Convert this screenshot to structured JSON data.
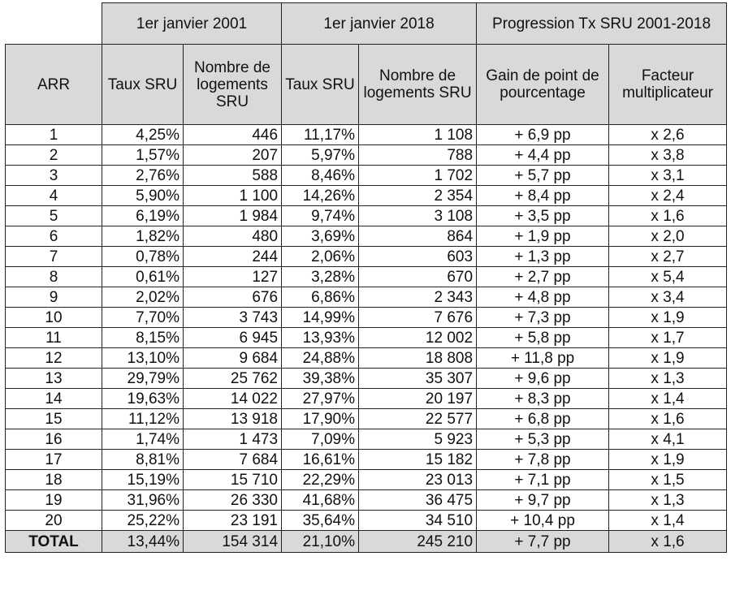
{
  "header": {
    "group_2001": "1er janvier 2001",
    "group_2018": "1er janvier 2018",
    "group_progression": "Progression Tx SRU 2001-2018",
    "col_arr": "ARR",
    "col_taux_2001": "Taux SRU",
    "col_nb_2001": "Nombre de logements SRU",
    "col_taux_2018": "Taux SRU",
    "col_nb_2018": "Nombre de logements SRU",
    "col_gain": "Gain de point de pourcentage",
    "col_facteur": "Facteur multiplicateur"
  },
  "rows": [
    {
      "arr": "1",
      "taux2001": "4,25%",
      "nb2001": "446",
      "taux2018": "11,17%",
      "nb2018": "1 108",
      "gain": "+ 6,9 pp",
      "facteur": "x 2,6",
      "bold": true
    },
    {
      "arr": "2",
      "taux2001": "1,57%",
      "nb2001": "207",
      "taux2018": "5,97%",
      "nb2018": "788",
      "gain": "+ 4,4 pp",
      "facteur": "x 3,8",
      "bold": true
    },
    {
      "arr": "3",
      "taux2001": "2,76%",
      "nb2001": "588",
      "taux2018": "8,46%",
      "nb2018": "1 702",
      "gain": "+ 5,7 pp",
      "facteur": "x 3,1",
      "bold": true
    },
    {
      "arr": "4",
      "taux2001": "5,90%",
      "nb2001": "1 100",
      "taux2018": "14,26%",
      "nb2018": "2 354",
      "gain": "+ 8,4 pp",
      "facteur": "x 2,4",
      "bold": true
    },
    {
      "arr": "5",
      "taux2001": "6,19%",
      "nb2001": "1 984",
      "taux2018": "9,74%",
      "nb2018": "3 108",
      "gain": "+ 3,5 pp",
      "facteur": "x 1,6",
      "bold": false
    },
    {
      "arr": "6",
      "taux2001": "1,82%",
      "nb2001": "480",
      "taux2018": "3,69%",
      "nb2018": "864",
      "gain": "+ 1,9 pp",
      "facteur": "x 2,0",
      "bold": true
    },
    {
      "arr": "7",
      "taux2001": "0,78%",
      "nb2001": "244",
      "taux2018": "2,06%",
      "nb2018": "603",
      "gain": "+ 1,3 pp",
      "facteur": "x 2,7",
      "bold": true
    },
    {
      "arr": "8",
      "taux2001": "0,61%",
      "nb2001": "127",
      "taux2018": "3,28%",
      "nb2018": "670",
      "gain": "+ 2,7 pp",
      "facteur": "x 5,4",
      "bold": true
    },
    {
      "arr": "9",
      "taux2001": "2,02%",
      "nb2001": "676",
      "taux2018": "6,86%",
      "nb2018": "2 343",
      "gain": "+ 4,8 pp",
      "facteur": "x 3,4",
      "bold": true
    },
    {
      "arr": "10",
      "taux2001": "7,70%",
      "nb2001": "3 743",
      "taux2018": "14,99%",
      "nb2018": "7 676",
      "gain": "+ 7,3 pp",
      "facteur": "x 1,9",
      "bold": false
    },
    {
      "arr": "11",
      "taux2001": "8,15%",
      "nb2001": "6 945",
      "taux2018": "13,93%",
      "nb2018": "12 002",
      "gain": "+ 5,8 pp",
      "facteur": "x 1,7",
      "bold": false
    },
    {
      "arr": "12",
      "taux2001": "13,10%",
      "nb2001": "9 684",
      "taux2018": "24,88%",
      "nb2018": "18 808",
      "gain": "+ 11,8 pp",
      "facteur": "x 1,9",
      "bold": false
    },
    {
      "arr": "13",
      "taux2001": "29,79%",
      "nb2001": "25 762",
      "taux2018": "39,38%",
      "nb2018": "35 307",
      "gain": "+ 9,6 pp",
      "facteur": "x 1,3",
      "bold": false
    },
    {
      "arr": "14",
      "taux2001": "19,63%",
      "nb2001": "14 022",
      "taux2018": "27,97%",
      "nb2018": "20 197",
      "gain": "+ 8,3 pp",
      "facteur": "x 1,4",
      "bold": false
    },
    {
      "arr": "15",
      "taux2001": "11,12%",
      "nb2001": "13 918",
      "taux2018": "17,90%",
      "nb2018": "22 577",
      "gain": "+ 6,8 pp",
      "facteur": "x 1,6",
      "bold": false
    },
    {
      "arr": "16",
      "taux2001": "1,74%",
      "nb2001": "1 473",
      "taux2018": "7,09%",
      "nb2018": "5 923",
      "gain": "+ 5,3 pp",
      "facteur": "x 4,1",
      "bold": true
    },
    {
      "arr": "17",
      "taux2001": "8,81%",
      "nb2001": "7 684",
      "taux2018": "16,61%",
      "nb2018": "15 182",
      "gain": "+ 7,8 pp",
      "facteur": "x 1,9",
      "bold": false
    },
    {
      "arr": "18",
      "taux2001": "15,19%",
      "nb2001": "15 710",
      "taux2018": "22,29%",
      "nb2018": "23 013",
      "gain": "+ 7,1 pp",
      "facteur": "x 1,5",
      "bold": false
    },
    {
      "arr": "19",
      "taux2001": "31,96%",
      "nb2001": "26 330",
      "taux2018": "41,68%",
      "nb2018": "36 475",
      "gain": "+ 9,7 pp",
      "facteur": "x 1,3",
      "bold": false
    },
    {
      "arr": "20",
      "taux2001": "25,22%",
      "nb2001": "23 191",
      "taux2018": "35,64%",
      "nb2018": "34 510",
      "gain": "+ 10,4 pp",
      "facteur": "x 1,4",
      "bold": false
    }
  ],
  "total": {
    "arr": "TOTAL",
    "taux2001": "13,44%",
    "nb2001": "154 314",
    "taux2018": "21,10%",
    "nb2018": "245 210",
    "gain": "+ 7,7 pp",
    "facteur": "x 1,6"
  },
  "colors": {
    "header_bg": "#d9d9d9",
    "border": "#222222"
  }
}
